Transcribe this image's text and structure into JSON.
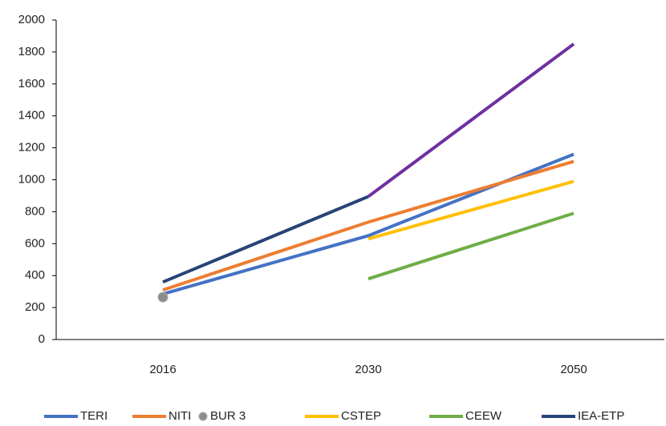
{
  "chart_data": {
    "type": "line",
    "categories": [
      "2016",
      "2030",
      "2050"
    ],
    "series": [
      {
        "name": "TERI",
        "color": "#4472c4",
        "values": [
          285,
          650,
          1160
        ]
      },
      {
        "name": "NITI",
        "color": "#ed7d31",
        "values": [
          310,
          735,
          1115
        ]
      },
      {
        "name": "BUR 3",
        "color": "#8c8c8c",
        "marker": true,
        "values": [
          265,
          null,
          null
        ]
      },
      {
        "name": "CSTEP",
        "color": "#ffc000",
        "values": [
          null,
          630,
          990
        ]
      },
      {
        "name": "CEEW",
        "color": "#70ad47",
        "values": [
          null,
          380,
          790
        ]
      },
      {
        "name": "IEA-ETP",
        "color": "#264478",
        "values": [
          360,
          895,
          null
        ]
      },
      {
        "color": "#7030a0",
        "values": [
          null,
          895,
          1850
        ]
      }
    ],
    "ylim": [
      0,
      2000
    ],
    "yticks": [
      0,
      200,
      400,
      600,
      800,
      1000,
      1200,
      1400,
      1600,
      1800,
      2000
    ],
    "grid": false,
    "legend": "bottom"
  }
}
